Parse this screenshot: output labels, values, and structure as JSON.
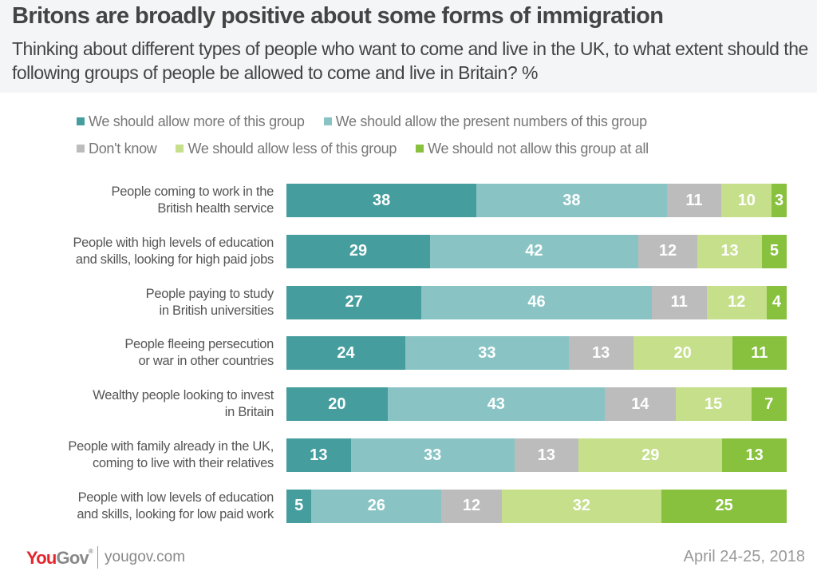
{
  "header": {
    "title": "Britons are broadly positive about some forms of immigration",
    "subtitle": "Thinking about different types of people who want to come and live in the UK, to what extent should the following groups of people be allowed to come and live in Britain? %"
  },
  "footer": {
    "logo_you": "You",
    "logo_gov": "Gov",
    "logo_reg": "®",
    "site": "yougov.com",
    "date": "April 24-25, 2018"
  },
  "chart_data": {
    "type": "bar",
    "orientation": "horizontal",
    "stacked": true,
    "title": "Britons are broadly positive about some forms of immigration",
    "subtitle": "Thinking about different types of people who want to come and live in the UK, to what extent should the following groups of people be allowed to come and live in Britain? %",
    "xlabel": "",
    "ylabel": "",
    "xlim": [
      0,
      100
    ],
    "grid": false,
    "legend_position": "top",
    "categories": [
      "People coming to work in the British health service",
      "People with high levels of education and skills, looking for high paid jobs",
      "People paying to study in British universities",
      "People fleeing persecution or war in other countries",
      "Wealthy people looking to invest in Britain",
      "People with family already in the UK, coming to live with their relatives",
      "People with low levels of education and skills, looking for low paid work"
    ],
    "category_lines": [
      [
        "People coming to work in the",
        "British health service"
      ],
      [
        "People with high levels of education",
        "and skills, looking for high paid jobs"
      ],
      [
        "People paying to study",
        "in British universities"
      ],
      [
        "People fleeing persecution",
        "or war in other countries"
      ],
      [
        "Wealthy people looking to invest",
        "in Britain"
      ],
      [
        "People with family already in the UK,",
        "coming to live with their relatives"
      ],
      [
        "People with low levels of education",
        "and skills, looking for low paid work"
      ]
    ],
    "series": [
      {
        "name": "We should allow more of this group",
        "color": "#459d9e",
        "values": [
          38,
          29,
          27,
          24,
          20,
          13,
          5
        ]
      },
      {
        "name": "We should allow the present numbers of this group",
        "color": "#89c3c4",
        "values": [
          38,
          42,
          46,
          33,
          43,
          33,
          26
        ]
      },
      {
        "name": "Don't know",
        "color": "#bcbcbc",
        "values": [
          11,
          12,
          11,
          13,
          14,
          13,
          12
        ]
      },
      {
        "name": "We should allow less of this group",
        "color": "#c5df8b",
        "values": [
          10,
          13,
          12,
          20,
          15,
          29,
          32
        ]
      },
      {
        "name": "We should not allow this group at all",
        "color": "#87c13e",
        "values": [
          3,
          5,
          4,
          11,
          7,
          13,
          25
        ]
      }
    ],
    "legend_rows": [
      [
        0,
        1
      ],
      [
        2,
        3,
        4
      ]
    ]
  }
}
